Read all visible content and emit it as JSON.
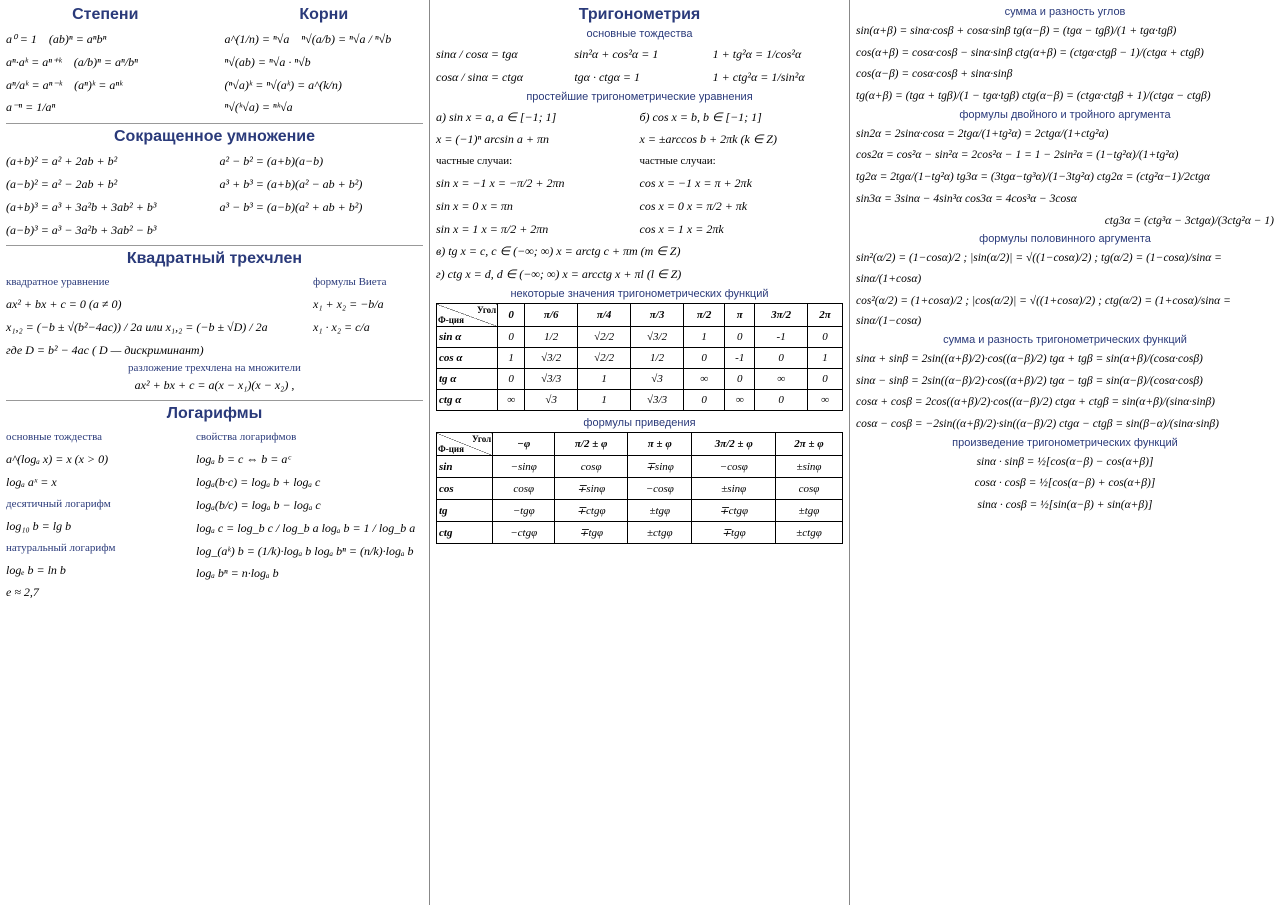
{
  "col1": {
    "h_powers": "Степени",
    "h_roots": "Корни",
    "powers": [
      "a⁰ = 1",
      "(ab)ⁿ = aⁿbⁿ",
      "aⁿ·aᵏ = aⁿ⁺ᵏ",
      "(a/b)ⁿ = aⁿ/bⁿ",
      "aⁿ/aᵏ = aⁿ⁻ᵏ",
      "(aⁿ)ᵏ = aⁿᵏ",
      "a⁻ⁿ = 1/aⁿ"
    ],
    "roots": [
      "a^(1/n) = ⁿ√a",
      "ⁿ√(a/b) = ⁿ√a / ⁿ√b",
      "ⁿ√(ab) = ⁿ√a · ⁿ√b",
      "(ⁿ√a)ᵏ = ⁿ√(aᵏ) = a^(k/n)",
      "ⁿ√(ᵏ√a) = ⁿᵏ√a"
    ],
    "h_mult": "Сокращенное умножение",
    "mult": [
      "(a+b)² = a² + 2ab + b²",
      "a² − b² = (a+b)(a−b)",
      "(a−b)² = a² − 2ab + b²",
      "a³ + b³ = (a+b)(a² − ab + b²)",
      "(a+b)³ = a³ + 3a²b + 3ab² + b³",
      "a³ − b³ = (a−b)(a² + ab + b²)",
      "(a−b)³ = a³ − 3a²b + 3ab² − b³"
    ],
    "h_quad": "Квадратный трехчлен",
    "quad_sub1": "квадратное уравнение",
    "quad_sub2": "формулы Виета",
    "quad_eq": "ax² + bx + c = 0  (a ≠ 0)",
    "quad_x12": "x₁,₂ = (−b ± √(b²−4ac)) / 2a   или   x₁,₂ = (−b ± √D) / 2a",
    "quad_d": "где D = b² − 4ac  ( D — дискриминант)",
    "vieta1": "x₁ + x₂ = −b/a",
    "vieta2": "x₁ · x₂ = c/a",
    "quad_fact_h": "разложение трехчлена на множители",
    "quad_fact": "ax² + bx + c = a(x − x₁)(x − x₂) ,",
    "h_log": "Логарифмы",
    "log_sub1": "основные тождества",
    "log_sub2": "свойства логарифмов",
    "log_left": [
      "a^(logₐ x) = x   (x > 0)",
      "logₐ aˣ = x",
      "десятичный логарифм",
      "log₁₀ b = lg b",
      "натуральный логарифм",
      "logₑ b = ln b",
      "e ≈ 2,7"
    ],
    "log_right": [
      "logₐ b = c  ⇔  b = aᶜ",
      "logₐ(b·c) = logₐ b + logₐ c",
      "logₐ(b/c) = logₐ b − logₐ c",
      "logₐ c = log_b c / log_b a      logₐ b = 1 / log_b a",
      "log_(aᵏ) b = (1/k)·logₐ b     logₐ bⁿ = (n/k)·logₐ b",
      "logₐ bⁿ = n·logₐ b"
    ]
  },
  "col2": {
    "h_trig": "Тригонометрия",
    "sub_ident": "основные тождества",
    "ident": [
      "sinα / cosα = tgα",
      "sin²α + cos²α = 1",
      "1 + tg²α = 1/cos²α",
      "cosα / sinα = ctgα",
      "tgα · ctgα = 1",
      "1 + ctg²α = 1/sin²α"
    ],
    "sub_eqs": "простейшие тригонометрические уравнения",
    "eq_a": "а)  sin x = a,    a ∈ [−1; 1]",
    "eq_a2": "x = (−1)ⁿ arcsin a + πn",
    "eq_b": "б)  cos x = b,    b ∈ [−1; 1]",
    "eq_b2": "x = ±arccos b + 2πk    (k ∈ Z)",
    "cases_h": "частные случаи:",
    "cases_sin": [
      "sin x = −1    x = −π/2 + 2πn",
      "sin x = 0     x = πn",
      "sin x = 1     x = π/2 + 2πn"
    ],
    "cases_cos": [
      "cos x = −1    x = π + 2πk",
      "cos x = 0     x = π/2 + πk",
      "cos x = 1     x = 2πk"
    ],
    "eq_c": "в)  tg x = c,    c ∈ (−∞; ∞)    x = arctg c + πm    (m ∈ Z)",
    "eq_d": "г)  ctg x = d,   d ∈ (−∞; ∞)    x = arcctg x + πl    (l ∈ Z)",
    "sub_values": "некоторые значения тригонометрических функций",
    "tbl1": {
      "corner1": "Угол",
      "corner2": "Ф-ция",
      "cols": [
        "0",
        "π/6",
        "π/4",
        "π/3",
        "π/2",
        "π",
        "3π/2",
        "2π"
      ],
      "rows": [
        {
          "h": "sin α",
          "v": [
            "0",
            "1/2",
            "√2/2",
            "√3/2",
            "1",
            "0",
            "-1",
            "0"
          ]
        },
        {
          "h": "cos α",
          "v": [
            "1",
            "√3/2",
            "√2/2",
            "1/2",
            "0",
            "-1",
            "0",
            "1"
          ]
        },
        {
          "h": "tg α",
          "v": [
            "0",
            "√3/3",
            "1",
            "√3",
            "∞",
            "0",
            "∞",
            "0"
          ]
        },
        {
          "h": "ctg α",
          "v": [
            "∞",
            "√3",
            "1",
            "√3/3",
            "0",
            "∞",
            "0",
            "∞"
          ]
        }
      ]
    },
    "sub_reduct": "формулы приведения",
    "tbl2": {
      "corner1": "Угол",
      "corner2": "Ф-ция",
      "cols": [
        "−φ",
        "π/2 ± φ",
        "π ± φ",
        "3π/2 ± φ",
        "2π ± φ"
      ],
      "rows": [
        {
          "h": "sin",
          "v": [
            "−sinφ",
            "cosφ",
            "∓sinφ",
            "−cosφ",
            "±sinφ"
          ]
        },
        {
          "h": "cos",
          "v": [
            "cosφ",
            "∓sinφ",
            "−cosφ",
            "±sinφ",
            "cosφ"
          ]
        },
        {
          "h": "tg",
          "v": [
            "−tgφ",
            "∓ctgφ",
            "±tgφ",
            "∓ctgφ",
            "±tgφ"
          ]
        },
        {
          "h": "ctg",
          "v": [
            "−ctgφ",
            "∓tgφ",
            "±ctgφ",
            "∓tgφ",
            "±ctgφ"
          ]
        }
      ]
    }
  },
  "col3": {
    "sub_sum": "сумма и разность углов",
    "sum": [
      "sin(α+β) = sinα·cosβ + cosα·sinβ        tg(α−β) = (tgα − tgβ)/(1 + tgα·tgβ)",
      "cos(α+β) = cosα·cosβ − sinα·sinβ       ctg(α+β) = (ctgα·ctgβ − 1)/(ctgα + ctgβ)",
      "cos(α−β) = cosα·cosβ + sinα·sinβ",
      "tg(α+β) = (tgα + tgβ)/(1 − tgα·tgβ)     ctg(α−β) = (ctgα·ctgβ + 1)/(ctgα − ctgβ)"
    ],
    "sub_double": "формулы двойного и тройного аргумента",
    "dbl": [
      "sin2α = 2sinα·cosα = 2tgα/(1+tg²α) = 2ctgα/(1+ctg²α)",
      "cos2α = cos²α − sin²α = 2cos²α − 1 = 1 − 2sin²α = (1−tg²α)/(1+tg²α)",
      "tg2α = 2tgα/(1−tg²α)     tg3α = (3tgα−tg³α)/(1−3tg²α)     ctg2α = (ctg²α−1)/2ctgα",
      "sin3α = 3sinα − 4sin³α                    cos3α = 4cos³α − 3cosα",
      "ctg3α = (ctg³α − 3ctgα)/(3ctg²α − 1)"
    ],
    "sub_half": "формулы половинного аргумента",
    "half": [
      "sin²(α/2) = (1−cosα)/2 ;  |sin(α/2)| = √((1−cosα)/2) ;  tg(α/2) = (1−cosα)/sinα = sinα/(1+cosα)",
      "cos²(α/2) = (1+cosα)/2 ;  |cos(α/2)| = √((1+cosα)/2) ;  ctg(α/2) = (1+cosα)/sinα = sinα/(1−cosα)"
    ],
    "sub_sumdiff": "сумма и разность тригонометрических функций",
    "sumdiff": [
      "sinα + sinβ = 2sin((α+β)/2)·cos((α−β)/2)       tgα + tgβ = sin(α+β)/(cosα·cosβ)",
      "sinα − sinβ = 2sin((α−β)/2)·cos((α+β)/2)       tgα − tgβ = sin(α−β)/(cosα·cosβ)",
      "cosα + cosβ = 2cos((α+β)/2)·cos((α−β)/2)      ctgα + ctgβ = sin(α+β)/(sinα·sinβ)",
      "cosα − cosβ = −2sin((α+β)/2)·sin((α−β)/2)     ctgα − ctgβ = sin(β−α)/(sinα·sinβ)"
    ],
    "sub_prod": "произведение тригонометрических функций",
    "prod": [
      "sinα · sinβ = ½[cos(α−β) − cos(α+β)]",
      "cosα · cosβ = ½[cos(α−β) + cos(α+β)]",
      "sinα · cosβ = ½[sin(α−β) + sin(α+β)]"
    ]
  }
}
